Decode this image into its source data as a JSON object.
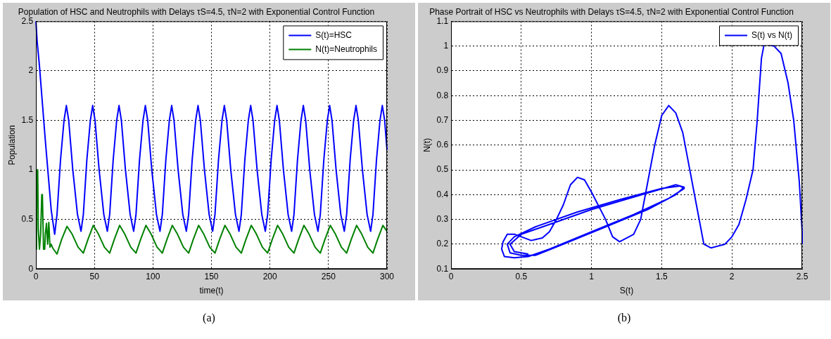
{
  "chart_data": [
    {
      "type": "line",
      "title": "Population of HSC and Neutrophils with Delays τS=4.5, τN=2 with Exponential Control Function",
      "xlabel": "time(t)",
      "ylabel": "Population",
      "xlim": [
        0,
        300
      ],
      "xticks": [
        0,
        50,
        100,
        150,
        200,
        250,
        300
      ],
      "ylim": [
        0,
        2.5
      ],
      "yticks": [
        0,
        0.5,
        1,
        1.5,
        2,
        2.5
      ],
      "grid": true,
      "legend": "top right",
      "marker": "none",
      "line_style": "solid",
      "annotations": [
        "(a)"
      ],
      "series": [
        {
          "name": "S(t)=HSC",
          "color": "#0000ff",
          "x": [
            0,
            1,
            3,
            8,
            13,
            16,
            18,
            21,
            24,
            26,
            28,
            31.5,
            35.5,
            38.5,
            40.5,
            43.5,
            46.5,
            48.5,
            50.5,
            54,
            58,
            61,
            63,
            66,
            69,
            71,
            73,
            76.5,
            80.5,
            83.5,
            85.5,
            88.5,
            91.5,
            93.5,
            95.5,
            99,
            103,
            106,
            108,
            111,
            114,
            116,
            118,
            121.5,
            125.5,
            128.5,
            130.5,
            133.5,
            136.5,
            138.5,
            140.5,
            144,
            148,
            151,
            153,
            156,
            159,
            161,
            163,
            166.5,
            170.5,
            173.5,
            175.5,
            178.5,
            181.5,
            183.5,
            185.5,
            189,
            193,
            196,
            198,
            201,
            204,
            206,
            208,
            211.5,
            215.5,
            218.5,
            220.5,
            223.5,
            226.5,
            228.5,
            230.5,
            234,
            238,
            241,
            243,
            246,
            249,
            251,
            253,
            256.5,
            260.5,
            263.5,
            265.5,
            268.5,
            271.5,
            273.5,
            275.5,
            279,
            283,
            286,
            288,
            291,
            294,
            296,
            298,
            300
          ],
          "values": [
            2.5,
            2.3,
            2.05,
            1.3,
            0.6,
            0.35,
            0.55,
            1.1,
            1.5,
            1.65,
            1.5,
            1.0,
            0.55,
            0.38,
            0.55,
            1.1,
            1.5,
            1.65,
            1.5,
            1.0,
            0.55,
            0.38,
            0.55,
            1.1,
            1.5,
            1.65,
            1.5,
            1.0,
            0.55,
            0.38,
            0.55,
            1.1,
            1.5,
            1.65,
            1.5,
            1.0,
            0.55,
            0.38,
            0.55,
            1.1,
            1.5,
            1.65,
            1.5,
            1.0,
            0.55,
            0.38,
            0.55,
            1.1,
            1.5,
            1.65,
            1.5,
            1.0,
            0.55,
            0.38,
            0.55,
            1.1,
            1.5,
            1.65,
            1.5,
            1.0,
            0.55,
            0.38,
            0.55,
            1.1,
            1.5,
            1.65,
            1.5,
            1.0,
            0.55,
            0.38,
            0.55,
            1.1,
            1.5,
            1.65,
            1.5,
            1.0,
            0.55,
            0.38,
            0.55,
            1.1,
            1.5,
            1.65,
            1.5,
            1.0,
            0.55,
            0.38,
            0.55,
            1.1,
            1.5,
            1.65,
            1.5,
            1.0,
            0.55,
            0.38,
            0.55,
            1.1,
            1.5,
            1.65,
            1.5,
            1.0,
            0.55,
            0.38,
            0.55,
            1.1,
            1.5,
            1.65,
            1.5,
            1.2
          ]
        },
        {
          "name": "N(t)=Neutrophils",
          "color": "#008000",
          "x": [
            0,
            0.5,
            1,
            1.5,
            2,
            3,
            4,
            5,
            5.5,
            6.5,
            7.5,
            8,
            9,
            10,
            11,
            12,
            13,
            14,
            15,
            18,
            22,
            26.5,
            31,
            36,
            40.5,
            44.5,
            49,
            53.5,
            58.5,
            63,
            67,
            71.5,
            76,
            81,
            85.5,
            89.5,
            94,
            98.5,
            103.5,
            108,
            112,
            116.5,
            121,
            126,
            130.5,
            134.5,
            139,
            143.5,
            148.5,
            153,
            157,
            161.5,
            166,
            171,
            175.5,
            179.5,
            184,
            188.5,
            193.5,
            198,
            202,
            206.5,
            211,
            216,
            220.5,
            224.5,
            229,
            233.5,
            238.5,
            243,
            247,
            251.5,
            256,
            261,
            265.5,
            269.5,
            274,
            278.5,
            283.5,
            288,
            292,
            296.5,
            300
          ],
          "values": [
            0.2,
            1.0,
            0.88,
            1.0,
            0.4,
            0.2,
            0.35,
            0.75,
            0.75,
            0.2,
            0.2,
            0.35,
            0.46,
            0.25,
            0.47,
            0.22,
            0.25,
            0.22,
            0.2,
            0.15,
            0.3,
            0.43,
            0.35,
            0.22,
            0.16,
            0.3,
            0.44,
            0.35,
            0.22,
            0.16,
            0.3,
            0.44,
            0.35,
            0.22,
            0.16,
            0.3,
            0.44,
            0.35,
            0.22,
            0.16,
            0.3,
            0.44,
            0.35,
            0.22,
            0.16,
            0.3,
            0.44,
            0.35,
            0.22,
            0.16,
            0.3,
            0.44,
            0.35,
            0.22,
            0.16,
            0.3,
            0.44,
            0.35,
            0.22,
            0.16,
            0.3,
            0.44,
            0.35,
            0.22,
            0.16,
            0.3,
            0.44,
            0.35,
            0.22,
            0.16,
            0.3,
            0.44,
            0.35,
            0.22,
            0.16,
            0.3,
            0.44,
            0.35,
            0.22,
            0.16,
            0.3,
            0.44,
            0.38
          ]
        }
      ]
    },
    {
      "type": "line",
      "title": "Phase Portrait of HSC vs Neutrophils with Delays τS=4.5, τN=2 with Exponential Control Function",
      "xlabel": "S(t)",
      "ylabel": "N(t)",
      "xlim": [
        0,
        2.5
      ],
      "xticks": [
        0,
        0.5,
        1,
        1.5,
        2,
        2.5
      ],
      "ylim": [
        0.1,
        1.1
      ],
      "yticks": [
        0.1,
        0.2,
        0.3,
        0.4,
        0.5,
        0.6,
        0.7,
        0.8,
        0.9,
        1,
        1.1
      ],
      "grid": true,
      "legend": "top right",
      "marker": "none",
      "line_style": "solid",
      "annotations": [
        "(b)"
      ],
      "series": [
        {
          "name": "S(t) vs N(t)",
          "color": "#0000ff",
          "x": [
            2.5,
            2.5,
            2.48,
            2.44,
            2.4,
            2.35,
            2.3,
            2.23,
            2.21,
            2.18,
            2.15,
            2.1,
            2.05,
            2.0,
            1.95,
            1.85,
            1.8,
            1.75,
            1.7,
            1.65,
            1.6,
            1.55,
            1.5,
            1.45,
            1.4,
            1.35,
            1.3,
            1.2,
            1.15,
            1.1,
            1.0,
            0.95,
            0.9,
            0.85,
            0.8,
            0.75,
            0.7,
            0.65,
            0.57,
            0.5,
            0.45,
            0.4,
            0.37,
            0.36,
            0.38,
            0.45,
            0.55,
            0.7,
            1.0,
            1.3,
            1.55,
            1.66,
            1.63,
            1.5,
            1.2,
            0.9,
            0.6,
            0.45,
            0.4,
            0.42,
            0.5,
            0.6,
            0.8,
            1.1,
            1.4,
            1.6,
            1.66,
            1.6,
            1.3,
            1.0,
            0.7,
            0.5,
            0.42,
            0.45,
            0.55
          ],
          "values": [
            0.2,
            0.25,
            0.45,
            0.7,
            0.85,
            0.97,
            1.0,
            1.01,
            0.95,
            0.7,
            0.5,
            0.38,
            0.28,
            0.23,
            0.2,
            0.185,
            0.2,
            0.35,
            0.5,
            0.65,
            0.73,
            0.76,
            0.72,
            0.6,
            0.45,
            0.3,
            0.24,
            0.21,
            0.23,
            0.3,
            0.41,
            0.46,
            0.47,
            0.44,
            0.36,
            0.3,
            0.25,
            0.225,
            0.215,
            0.23,
            0.24,
            0.24,
            0.21,
            0.18,
            0.15,
            0.145,
            0.15,
            0.18,
            0.25,
            0.32,
            0.385,
            0.425,
            0.435,
            0.425,
            0.38,
            0.33,
            0.27,
            0.23,
            0.2,
            0.165,
            0.155,
            0.155,
            0.2,
            0.27,
            0.34,
            0.4,
            0.43,
            0.44,
            0.39,
            0.34,
            0.28,
            0.24,
            0.2,
            0.17,
            0.16
          ]
        }
      ]
    }
  ]
}
